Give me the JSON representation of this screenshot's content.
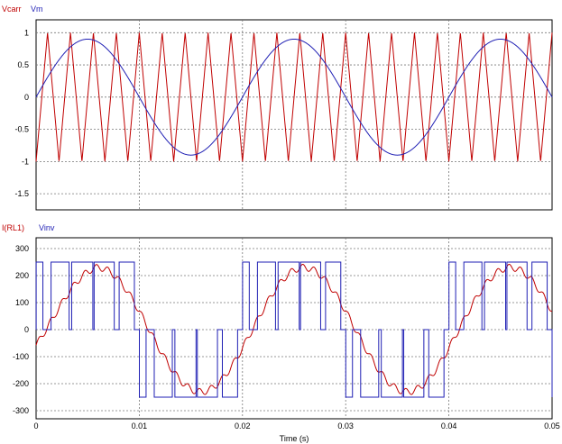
{
  "chart_data": [
    {
      "type": "line",
      "legend": [
        "Vcarr",
        "Vm"
      ],
      "legend_placement": "top-left",
      "xlim": [
        0,
        0.05
      ],
      "ylim": [
        -1.75,
        1.2
      ],
      "y_ticks": [
        -1.5,
        -1,
        -0.5,
        0,
        0.5,
        1
      ],
      "y_tick_labels": [
        "-1.5",
        "-1",
        "-0.5",
        "0",
        "0.5",
        "1"
      ],
      "grid": true,
      "series": [
        {
          "name": "Vcarr",
          "color": "#c00000",
          "waveform": "triangle",
          "frequency_hz": 450,
          "amplitude": 1
        },
        {
          "name": "Vm",
          "color": "#1f1fb4",
          "waveform": "sine",
          "frequency_hz": 50,
          "amplitude": 0.9
        }
      ]
    },
    {
      "type": "line",
      "legend": [
        "I(RL1)",
        "Vinv"
      ],
      "legend_placement": "top-left",
      "xlim": [
        0,
        0.05
      ],
      "ylim": [
        -330,
        340
      ],
      "y_ticks": [
        -300,
        -200,
        -100,
        0,
        100,
        200,
        300
      ],
      "y_tick_labels": [
        "-300",
        "-200",
        "-100",
        "0",
        "100",
        "200",
        "300"
      ],
      "x_ticks": [
        0,
        0.01,
        0.02,
        0.03,
        0.04,
        0.05
      ],
      "x_tick_labels": [
        "0",
        "0.01",
        "0.02",
        "0.03",
        "0.04",
        "0.05"
      ],
      "xlabel": "Time (s)",
      "grid": true,
      "series": [
        {
          "name": "I(RL1)",
          "color": "#c00000",
          "waveform": "load current",
          "peak": 230
        },
        {
          "name": "Vinv",
          "color": "#1f1fb4",
          "waveform": "unipolar PWM",
          "levels": [
            -250,
            0,
            250
          ]
        }
      ]
    }
  ]
}
